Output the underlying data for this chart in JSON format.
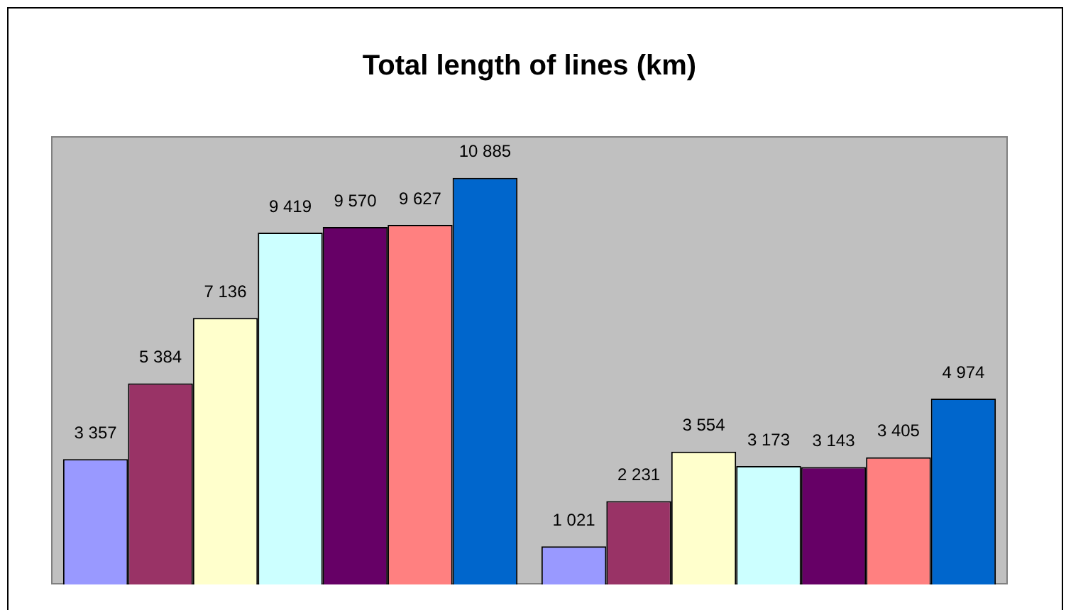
{
  "chart_data": {
    "type": "bar",
    "title": "Total length of lines (km)",
    "categories": [
      null,
      null
    ],
    "series": [
      {
        "color": "#9999ff",
        "values": [
          3357,
          1021
        ],
        "value_labels": [
          "3 357",
          "1 021"
        ]
      },
      {
        "color": "#993366",
        "values": [
          5384,
          2231
        ],
        "value_labels": [
          "5 384",
          "2 231"
        ]
      },
      {
        "color": "#ffffcc",
        "values": [
          7136,
          3554
        ],
        "value_labels": [
          "7 136",
          "3 554"
        ]
      },
      {
        "color": "#ccffff",
        "values": [
          9419,
          3173
        ],
        "value_labels": [
          "9 419",
          "3 173"
        ]
      },
      {
        "color": "#660066",
        "values": [
          9570,
          3143
        ],
        "value_labels": [
          "9 570",
          "3 143"
        ]
      },
      {
        "color": "#ff8080",
        "values": [
          9627,
          3405
        ],
        "value_labels": [
          "9 627",
          "3 405"
        ]
      },
      {
        "color": "#0066cc",
        "values": [
          10885,
          4974
        ],
        "value_labels": [
          "10 885",
          "4 974"
        ]
      }
    ]
  }
}
